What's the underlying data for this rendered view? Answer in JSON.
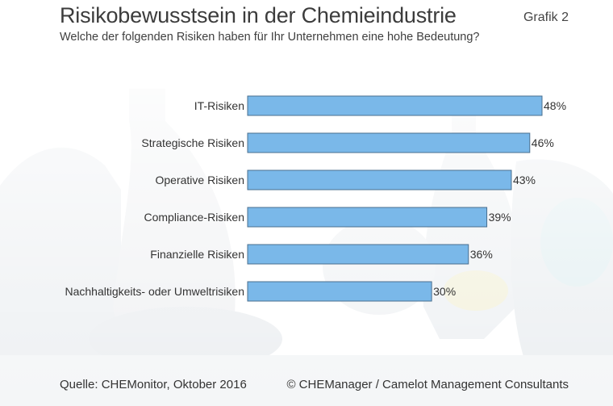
{
  "header": {
    "title": "Risikobewusstsein in der Chemieindustrie",
    "badge": "Grafik 2",
    "subtitle": "Welche der folgenden Risiken haben für Ihr Unternehmen eine hohe Bedeutung?"
  },
  "chart_data": {
    "type": "bar",
    "orientation": "horizontal",
    "categories": [
      "IT-Risiken",
      "Strategische Risiken",
      "Operative Risiken",
      "Compliance-Risiken",
      "Finanzielle Risiken",
      "Nachhaltigkeits- oder Umweltrisiken"
    ],
    "values": [
      48,
      46,
      43,
      39,
      36,
      30
    ],
    "value_labels": [
      "48%",
      "46%",
      "43%",
      "39%",
      "36%",
      "30%"
    ],
    "unit": "%",
    "xlim": [
      0,
      48
    ],
    "grid": false,
    "bar_color": "#7ab8e9",
    "bar_stroke": "#4a6f8f"
  },
  "footer": {
    "source": "Quelle: CHEMonitor, Oktober 2016",
    "copyright": "© CHEManager / Camelot Management Consultants"
  }
}
